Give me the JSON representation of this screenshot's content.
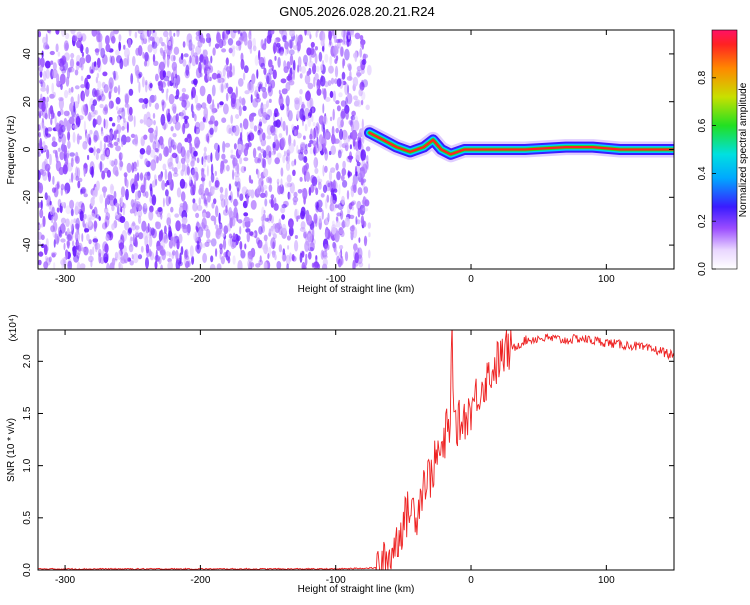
{
  "title": "GN05.2026.028.20.21.R24",
  "chart_data": [
    {
      "type": "heatmap",
      "xlabel": "Height of straight line (km)",
      "ylabel": "Frequency (Hz)",
      "xlim": [
        -320,
        150
      ],
      "ylim": [
        -50,
        50
      ],
      "xticks": [
        -300,
        -200,
        -100,
        0,
        100
      ],
      "xtick_labels": [
        "-300",
        "-200",
        "-100",
        "0",
        "100"
      ],
      "yticks": [
        -40,
        -20,
        0,
        20,
        40
      ],
      "ytick_labels": [
        "-40",
        "-20",
        "0",
        "20",
        "40"
      ],
      "signal_start_km": -75,
      "noise_region_km": [
        -320,
        -75
      ],
      "ridge_freq_track": [
        {
          "x": -75,
          "y": 7
        },
        {
          "x": -65,
          "y": 4
        },
        {
          "x": -55,
          "y": 1
        },
        {
          "x": -45,
          "y": -1
        },
        {
          "x": -35,
          "y": 1
        },
        {
          "x": -28,
          "y": 4
        },
        {
          "x": -22,
          "y": 0
        },
        {
          "x": -15,
          "y": -2
        },
        {
          "x": -5,
          "y": 0
        },
        {
          "x": 10,
          "y": 0
        },
        {
          "x": 40,
          "y": 0
        },
        {
          "x": 70,
          "y": 1
        },
        {
          "x": 90,
          "y": 1
        },
        {
          "x": 110,
          "y": 0
        },
        {
          "x": 150,
          "y": 0
        }
      ],
      "colorbar": {
        "label": "Normalized spectral amplitude",
        "range": [
          0,
          1
        ],
        "ticks": [
          0.0,
          0.2,
          0.4,
          0.6,
          0.8
        ],
        "tick_labels": [
          "0.0",
          "0.2",
          "0.4",
          "0.6",
          "0.8"
        ]
      },
      "grid": false,
      "legend": "none"
    },
    {
      "type": "line",
      "xlabel": "Height of straight line (km)",
      "ylabel": "SNR (10 * v/v)",
      "y_multiplier": "(x10⁴)",
      "xlim": [
        -320,
        150
      ],
      "ylim": [
        0,
        2.3
      ],
      "xticks": [
        -300,
        -200,
        -100,
        0,
        100
      ],
      "xtick_labels": [
        "-300",
        "-200",
        "-100",
        "0",
        "100"
      ],
      "yticks": [
        0.0,
        0.5,
        1.0,
        1.5,
        2.0
      ],
      "ytick_labels": [
        "0.0",
        "0.5",
        "1.0",
        "1.5",
        "2.0"
      ],
      "series": [
        {
          "color": "#ee2222",
          "x": [
            -320,
            -100,
            -70,
            -62,
            -55,
            -50,
            -45,
            -40,
            -35,
            -30,
            -25,
            -20,
            -18,
            -16,
            -14,
            -12,
            -10,
            -5,
            0,
            5,
            10,
            15,
            20,
            25,
            30,
            35,
            40,
            50,
            60,
            70,
            80,
            90,
            100,
            110,
            120,
            130,
            140,
            150
          ],
          "y": [
            0.01,
            0.01,
            0.02,
            0.08,
            0.28,
            0.45,
            0.6,
            0.55,
            0.85,
            0.9,
            1.1,
            1.15,
            1.4,
            1.25,
            2.28,
            1.3,
            1.4,
            1.45,
            1.55,
            1.7,
            1.8,
            1.9,
            2.0,
            2.08,
            2.12,
            2.16,
            2.2,
            2.22,
            2.22,
            2.2,
            2.22,
            2.2,
            2.18,
            2.16,
            2.15,
            2.12,
            2.1,
            2.05
          ]
        }
      ],
      "grid": false,
      "legend": "none"
    }
  ]
}
